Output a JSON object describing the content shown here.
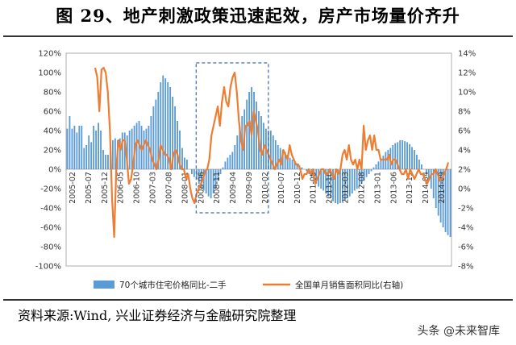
{
  "title": "图 29、地产刺激政策迅速起效，房产市场量价齐升",
  "source": "资料来源:Wind, 兴业证券经济与金融研究院整理",
  "watermark": "头条 @未来智库",
  "chart_data": {
    "type": "bar+line",
    "left_axis": {
      "ylim": [
        -100,
        120
      ],
      "ticks": [
        "-100%",
        "-80%",
        "-60%",
        "-40%",
        "-20%",
        "0%",
        "20%",
        "40%",
        "60%",
        "80%",
        "100%",
        "120%"
      ]
    },
    "right_axis": {
      "ylim": [
        -8,
        14
      ],
      "ticks": [
        "-8%",
        "-6%",
        "-4%",
        "-2%",
        "0%",
        "2%",
        "4%",
        "6%",
        "8%",
        "10%",
        "12%",
        "14%"
      ]
    },
    "x_tick_labels": [
      "2005-02",
      "2005-07",
      "2005-12",
      "2006-05",
      "2006-10",
      "2007-03",
      "2007-08",
      "2008-01",
      "2008-06",
      "2008-11",
      "2009-04",
      "2009-09",
      "2010-02",
      "2010-07",
      "2010-12",
      "2011-05",
      "2011-10",
      "2012-03",
      "2012-08",
      "2013-01",
      "2013-06",
      "2013-11",
      "2014-04",
      "2014-09"
    ],
    "series": [
      {
        "name": "70个城市住宅价格同比-二手",
        "type": "bar",
        "axis": "left",
        "color": "#5b9bd5",
        "values": [
          42,
          55,
          42,
          45,
          38,
          45,
          45,
          22,
          25,
          35,
          28,
          45,
          40,
          48,
          40,
          20,
          15,
          15,
          22,
          30,
          32,
          30,
          32,
          38,
          38,
          35,
          40,
          42,
          45,
          48,
          50,
          45,
          40,
          42,
          45,
          55,
          65,
          72,
          80,
          90,
          97,
          94,
          90,
          85,
          75,
          65,
          50,
          40,
          22,
          12,
          10,
          0,
          -5,
          -8,
          -10,
          -15,
          -20,
          -22,
          -25,
          -28,
          -30,
          -25,
          -20,
          -12,
          -5,
          2,
          8,
          12,
          15,
          18,
          25,
          35,
          45,
          55,
          62,
          72,
          80,
          85,
          80,
          70,
          60,
          55,
          48,
          42,
          40,
          40,
          35,
          30,
          25,
          22,
          20,
          18,
          15,
          12,
          10,
          8,
          6,
          4,
          2,
          0,
          -2,
          -5,
          -8,
          -12,
          -15,
          -18,
          -20,
          -22,
          -25,
          -28,
          -30,
          -33,
          -35,
          -36,
          -35,
          -33,
          -32,
          -30,
          -28,
          -25,
          -22,
          -20,
          -18,
          -15,
          -12,
          -8,
          -5,
          -2,
          2,
          5,
          8,
          10,
          14,
          18,
          20,
          22,
          25,
          27,
          28,
          30,
          30,
          29,
          28,
          26,
          23,
          20,
          15,
          10,
          5,
          0,
          -5,
          -12,
          -20,
          -30,
          -40,
          -48,
          -55,
          -60,
          -65,
          -68,
          -70
        ]
      },
      {
        "name": "全国单月销售面积同比(右轴)",
        "type": "line",
        "axis": "right",
        "color": "#ed7d31",
        "values": [
          12.5,
          11.5,
          8,
          12.3,
          12.5,
          12,
          10,
          6,
          -1,
          -5,
          2,
          5,
          4,
          5,
          5,
          3,
          0.5,
          1,
          2.5,
          4.5,
          5,
          4.5,
          4,
          4.5,
          5,
          4.5,
          4,
          3,
          2.5,
          2,
          3,
          4.5,
          4,
          3.5,
          3.5,
          3,
          2,
          3.5,
          4,
          3.5,
          2.5,
          2,
          2,
          1,
          1.5,
          0,
          -1,
          -1.5,
          -0.5,
          0,
          0.5,
          1,
          1.8,
          2,
          3,
          5.5,
          6.5,
          7.5,
          8.5,
          6.5,
          9,
          10.5,
          9,
          8.5,
          10.5,
          11.5,
          12,
          10,
          7,
          5,
          4,
          6.5,
          6.5,
          7,
          5.5,
          8,
          7,
          6,
          4,
          3.5,
          4.5,
          4,
          3.5,
          3,
          2.5,
          2,
          2.5,
          3,
          2.5,
          4,
          3.5,
          3,
          4.5,
          3.5,
          3,
          2.5,
          2.5,
          2,
          1,
          1.5,
          1.5,
          2,
          1.5,
          2,
          0.5,
          1,
          1.5,
          2,
          2,
          1.5,
          1.5,
          2,
          1.5,
          1,
          2,
          1.5,
          2,
          3.5,
          4,
          3,
          4.5,
          3,
          2.5,
          3,
          2,
          3,
          2,
          6.5,
          4,
          5,
          5.5,
          4,
          5.5,
          4,
          4,
          3,
          3,
          3,
          3,
          3.5,
          2.5,
          3,
          3,
          2.5,
          2,
          1.5,
          1.5,
          2,
          1,
          2,
          1.5,
          1,
          1.5,
          2,
          1.5,
          1.5,
          1,
          0.5,
          1,
          1.5,
          1.5,
          2,
          1.5,
          0.8,
          1,
          1.5,
          2,
          2.7
        ]
      }
    ],
    "annotation": "dashed-box highlighting 2008-11 to 2010-02 stimulus period"
  }
}
